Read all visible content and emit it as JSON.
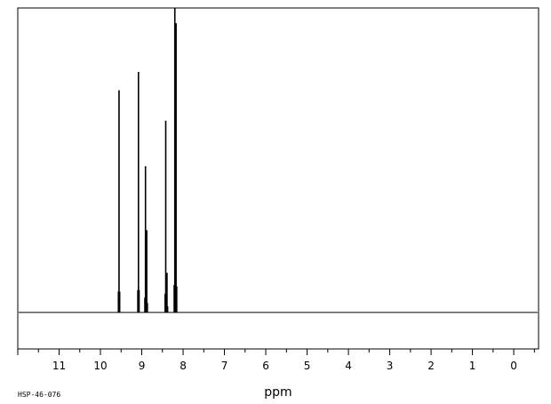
{
  "chart_data": {
    "type": "line",
    "xlabel": "ppm",
    "x_reversed": true,
    "xlim": [
      12.0,
      -0.6
    ],
    "ylim": [
      -0.12,
      1.0
    ],
    "x_ticks": [
      11,
      10,
      9,
      8,
      7,
      6,
      5,
      4,
      3,
      2,
      1,
      0
    ],
    "x_tick_labels": [
      "11",
      "10",
      "9",
      "8",
      "7",
      "6",
      "5",
      "4",
      "3",
      "2",
      "1",
      "0"
    ],
    "x_minor_step": 0.5,
    "grid": false,
    "spectrum_id": "HSP-46-076",
    "series": [
      {
        "color": "#000000",
        "peaks": [
          {
            "ppm": 9.55,
            "intensity": 0.73
          },
          {
            "ppm": 9.08,
            "intensity": 0.79
          },
          {
            "ppm": 8.91,
            "intensity": 0.48
          },
          {
            "ppm": 8.88,
            "intensity": 0.27
          },
          {
            "ppm": 8.42,
            "intensity": 0.63
          },
          {
            "ppm": 8.39,
            "intensity": 0.13
          },
          {
            "ppm": 8.2,
            "intensity": 1.0
          },
          {
            "ppm": 8.17,
            "intensity": 0.95
          }
        ]
      }
    ]
  }
}
